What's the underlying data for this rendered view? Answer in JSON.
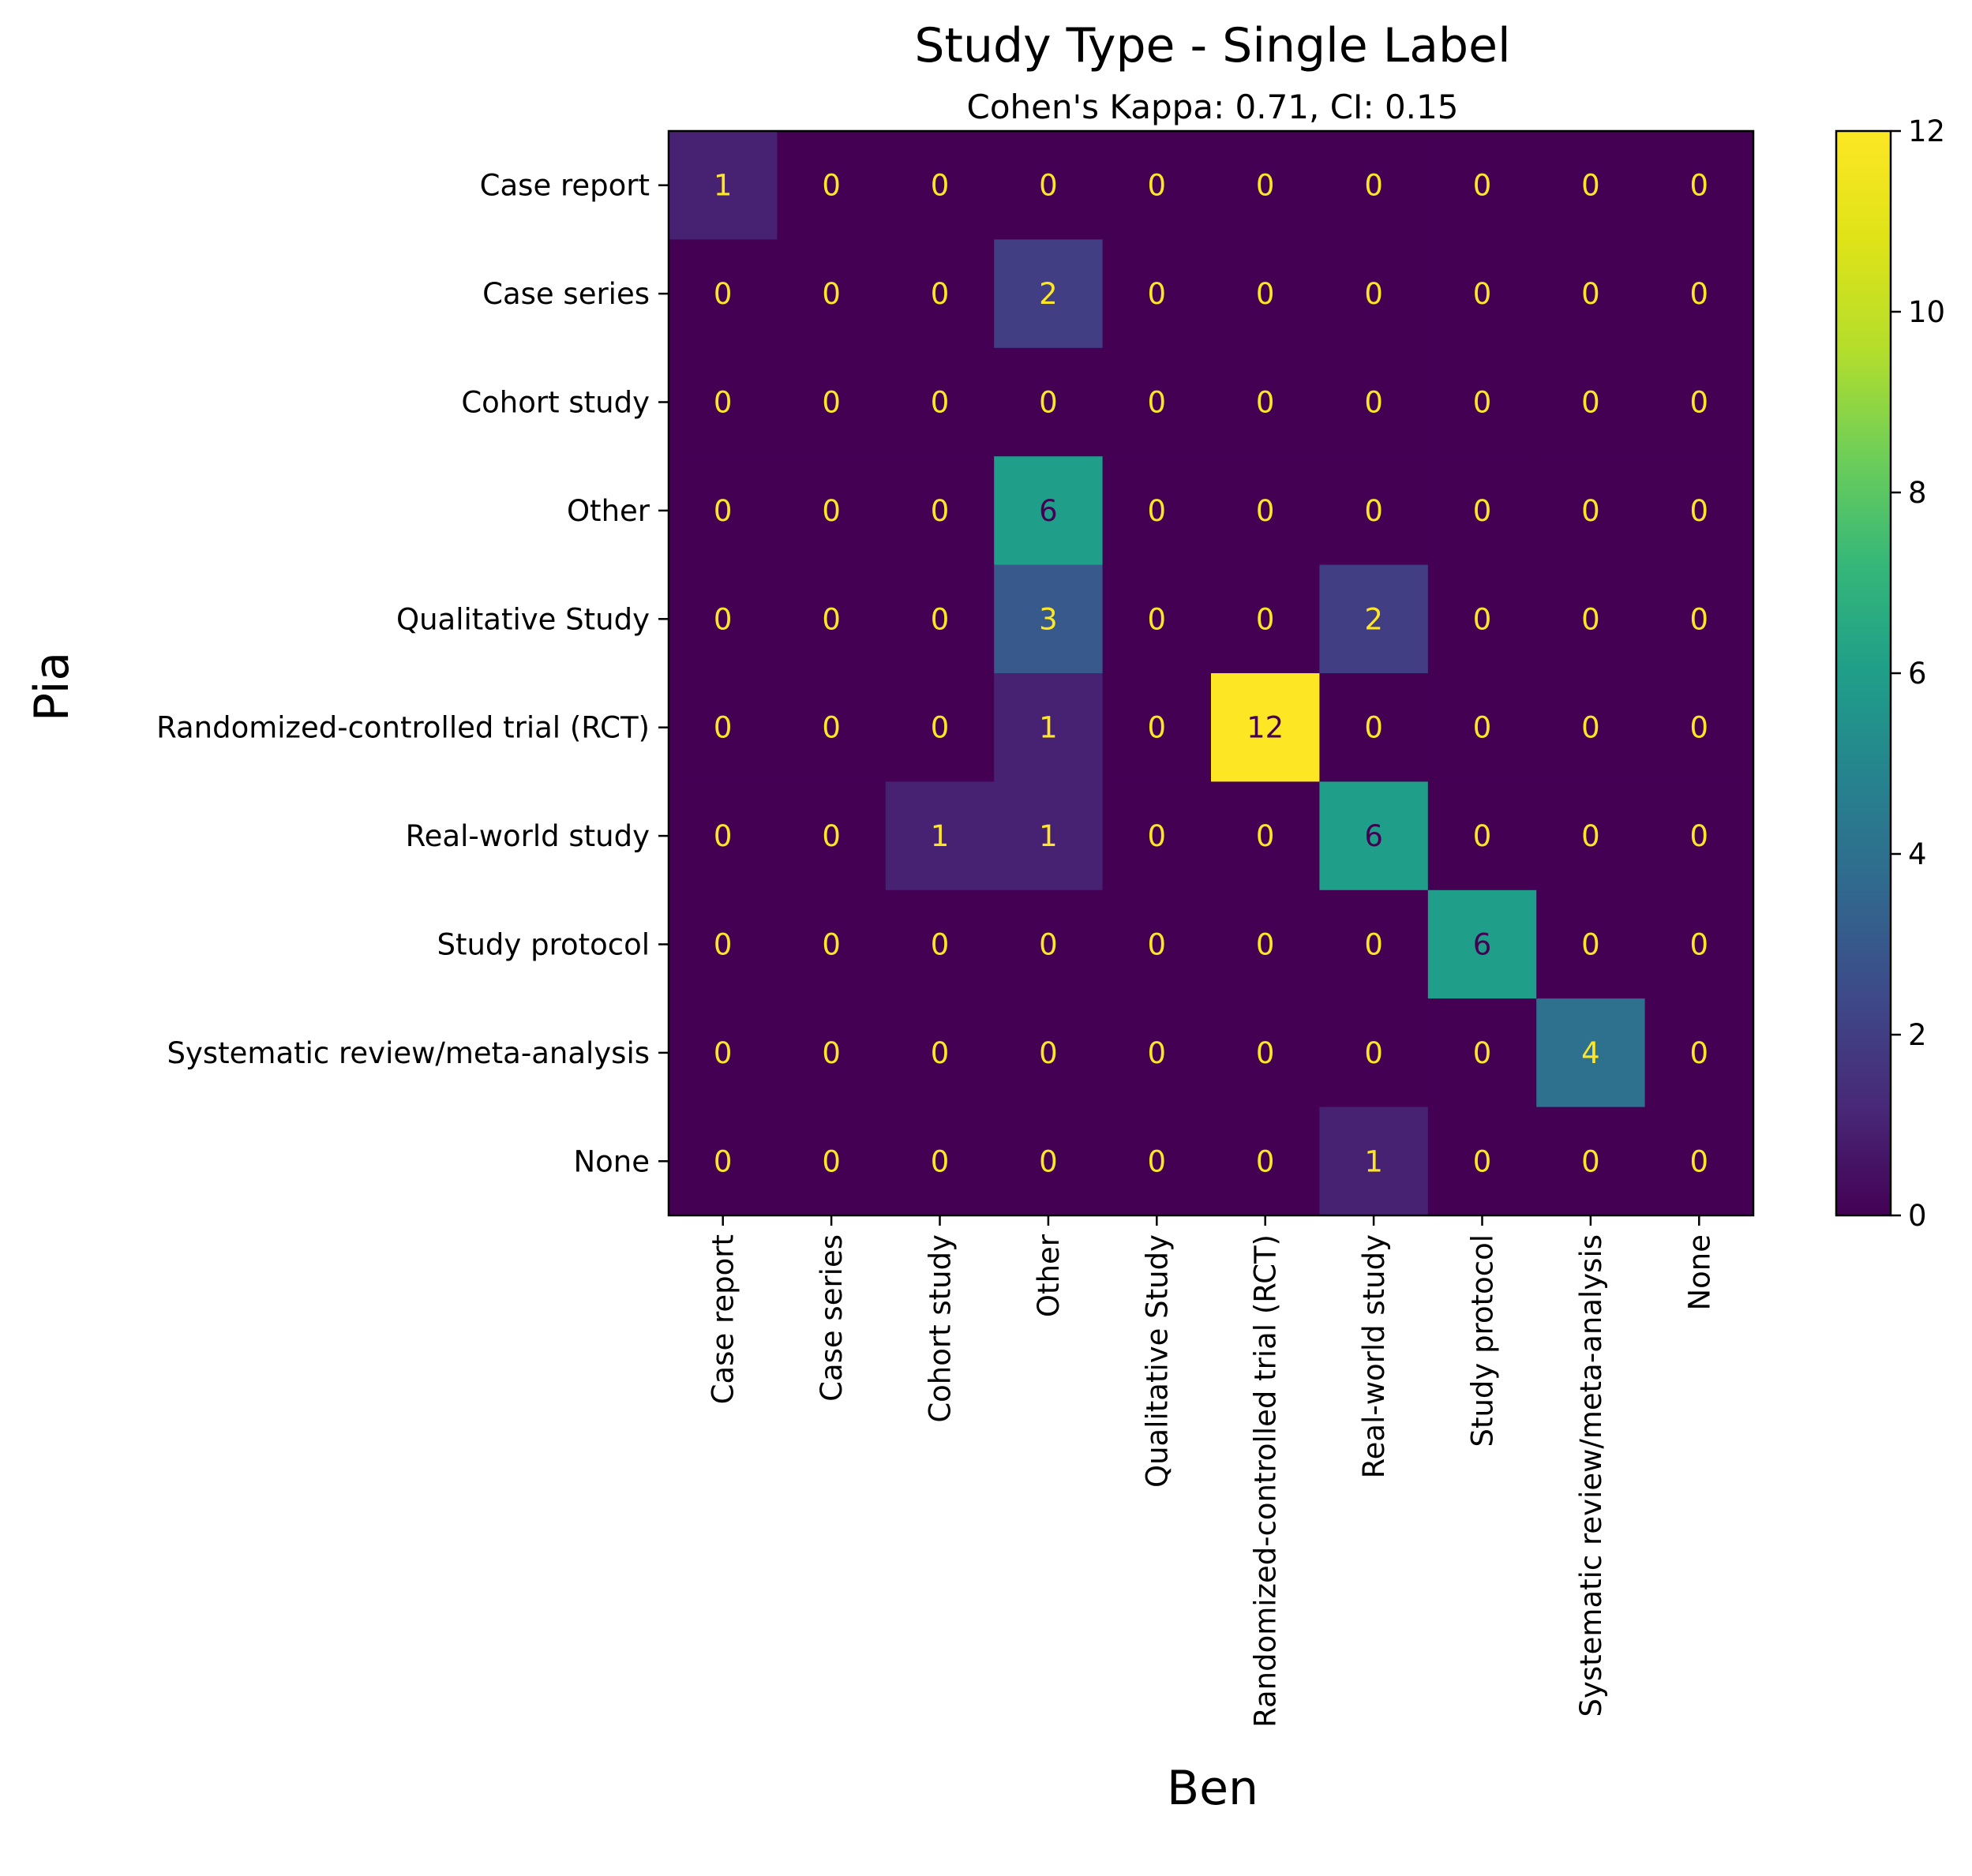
{
  "chart_data": {
    "type": "heatmap",
    "title": "Study Type - Single Label",
    "subtitle": "Cohen's Kappa: 0.71, CI: 0.15",
    "xlabel": "Ben",
    "ylabel": "Pia",
    "row_labels": [
      "Case report",
      "Case series",
      "Cohort study",
      "Other",
      "Qualitative Study",
      "Randomized-controlled trial (RCT)",
      "Real-world study",
      "Study protocol",
      "Systematic review/meta-analysis",
      "None"
    ],
    "col_labels": [
      "Case report",
      "Case series",
      "Cohort study",
      "Other",
      "Qualitative Study",
      "Randomized-controlled trial (RCT)",
      "Real-world study",
      "Study protocol",
      "Systematic review/meta-analysis",
      "None"
    ],
    "matrix": [
      [
        1,
        0,
        0,
        0,
        0,
        0,
        0,
        0,
        0,
        0
      ],
      [
        0,
        0,
        0,
        2,
        0,
        0,
        0,
        0,
        0,
        0
      ],
      [
        0,
        0,
        0,
        0,
        0,
        0,
        0,
        0,
        0,
        0
      ],
      [
        0,
        0,
        0,
        6,
        0,
        0,
        0,
        0,
        0,
        0
      ],
      [
        0,
        0,
        0,
        3,
        0,
        0,
        2,
        0,
        0,
        0
      ],
      [
        0,
        0,
        0,
        1,
        0,
        12,
        0,
        0,
        0,
        0
      ],
      [
        0,
        0,
        1,
        1,
        0,
        0,
        6,
        0,
        0,
        0
      ],
      [
        0,
        0,
        0,
        0,
        0,
        0,
        0,
        6,
        0,
        0
      ],
      [
        0,
        0,
        0,
        0,
        0,
        0,
        0,
        0,
        4,
        0
      ],
      [
        0,
        0,
        0,
        0,
        0,
        0,
        1,
        0,
        0,
        0
      ]
    ],
    "colorbar": {
      "colormap": "viridis",
      "range": [
        0,
        12
      ],
      "ticks": [
        0,
        2,
        4,
        6,
        8,
        10,
        12
      ]
    },
    "grid": false
  }
}
